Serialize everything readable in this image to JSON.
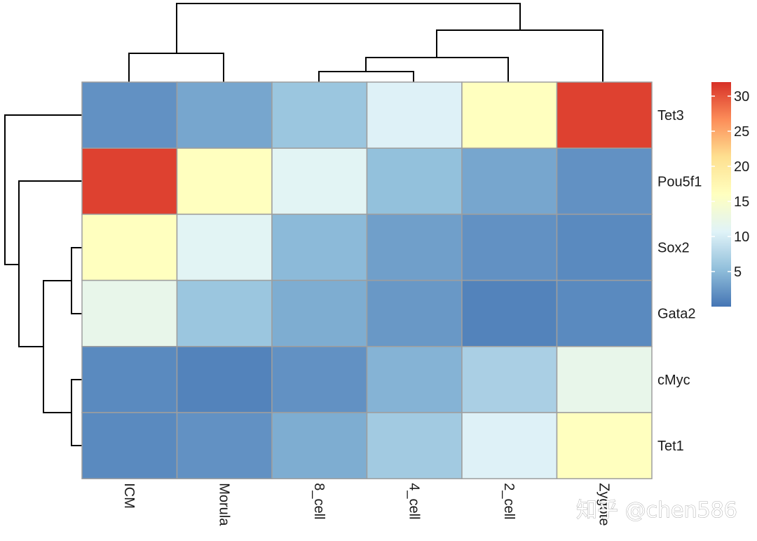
{
  "chart_data": {
    "type": "heatmap",
    "title": "",
    "xlabel": "",
    "ylabel": "",
    "columns": [
      "ICM",
      "Morula",
      "8_cell",
      "4_cell",
      "2_cell",
      "Zygote"
    ],
    "rows": [
      "Tet3",
      "Pou5f1",
      "Sox2",
      "Gata2",
      "cMyc",
      "Tet1"
    ],
    "values": [
      [
        2.0,
        3.5,
        6.0,
        10.5,
        16.0,
        31.0
      ],
      [
        31.0,
        16.0,
        11.0,
        5.5,
        3.5,
        2.0
      ],
      [
        16.0,
        11.0,
        5.0,
        3.0,
        2.0,
        1.5
      ],
      [
        12.0,
        6.0,
        4.0,
        2.5,
        1.0,
        1.5
      ],
      [
        1.5,
        1.0,
        2.0,
        4.5,
        7.0,
        12.0
      ],
      [
        1.5,
        2.0,
        4.0,
        6.5,
        10.5,
        16.0
      ]
    ],
    "color_scale": {
      "min": 0,
      "max": 32,
      "colors": [
        "#4575B4",
        "#91BFDB",
        "#E0F3F8",
        "#FFFFBF",
        "#FEE090",
        "#FC8D59",
        "#D73027"
      ],
      "ticks": [
        5,
        10,
        15,
        20,
        25,
        30
      ]
    },
    "column_dendrogram": true,
    "row_dendrogram": true,
    "cell_border_color": "#9e9e9e",
    "legend": "right"
  },
  "watermark": "知乎 @chen586"
}
